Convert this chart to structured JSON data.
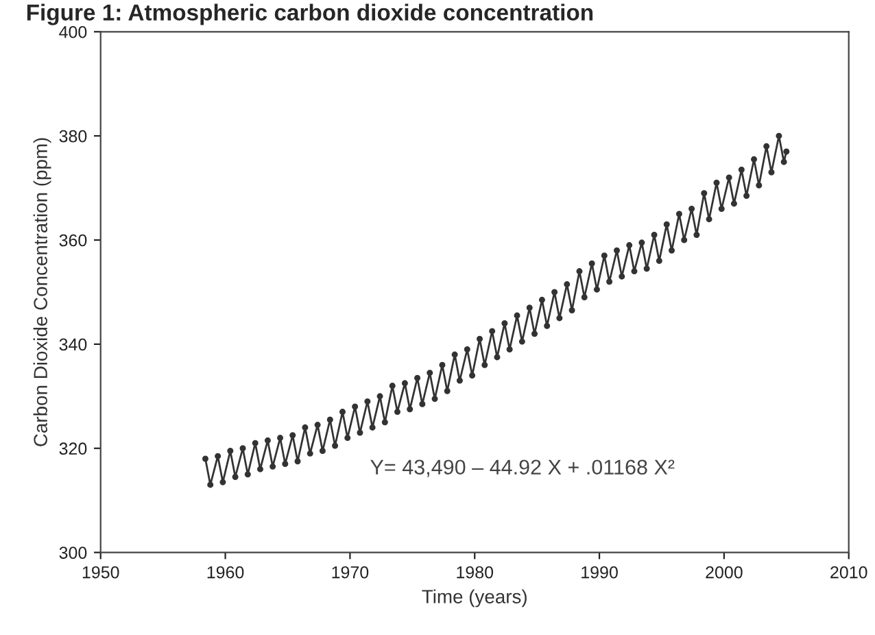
{
  "chart_data": {
    "type": "line",
    "title": "Figure 1: Atmospheric carbon dioxide concentration",
    "xlabel": "Time (years)",
    "ylabel": "Carbon Dioxide Concentration (ppm)",
    "annotations": [
      "Y= 43,490 – 44.92 X + .01168 X²"
    ],
    "xlim": [
      1950,
      2010
    ],
    "xticks": [
      1950,
      1960,
      1970,
      1980,
      1990,
      2000,
      2010
    ],
    "ylim": [
      300,
      400
    ],
    "yticks": [
      300,
      320,
      340,
      360,
      380,
      400
    ],
    "grid": false,
    "legend": false,
    "marker": "circle",
    "line_style": "solid",
    "series": [
      {
        "color": "#333333",
        "x": [
          1958.4,
          1958.8,
          1959.4,
          1959.8,
          1960.4,
          1960.8,
          1961.4,
          1961.8,
          1962.4,
          1962.8,
          1963.4,
          1963.8,
          1964.4,
          1964.8,
          1965.4,
          1965.8,
          1966.4,
          1966.8,
          1967.4,
          1967.8,
          1968.4,
          1968.8,
          1969.4,
          1969.8,
          1970.4,
          1970.8,
          1971.4,
          1971.8,
          1972.4,
          1972.8,
          1973.4,
          1973.8,
          1974.4,
          1974.8,
          1975.4,
          1975.8,
          1976.4,
          1976.8,
          1977.4,
          1977.8,
          1978.4,
          1978.8,
          1979.4,
          1979.8,
          1980.4,
          1980.8,
          1981.4,
          1981.8,
          1982.4,
          1982.8,
          1983.4,
          1983.8,
          1984.4,
          1984.8,
          1985.4,
          1985.8,
          1986.4,
          1986.8,
          1987.4,
          1987.8,
          1988.4,
          1988.8,
          1989.4,
          1989.8,
          1990.4,
          1990.8,
          1991.4,
          1991.8,
          1992.4,
          1992.8,
          1993.4,
          1993.8,
          1994.4,
          1994.8,
          1995.4,
          1995.8,
          1996.4,
          1996.8,
          1997.4,
          1997.8,
          1998.4,
          1998.8,
          1999.4,
          1999.8,
          2000.4,
          2000.8,
          2001.4,
          2001.8,
          2002.4,
          2002.8,
          2003.4,
          2003.8,
          2004.4,
          2004.8,
          2005.0
        ],
        "values": [
          318,
          313,
          318.5,
          313.5,
          319.5,
          314.5,
          320,
          315,
          321,
          316,
          321.5,
          316.5,
          322,
          317,
          322.5,
          317.5,
          324,
          319,
          324.5,
          319.5,
          325.5,
          320.5,
          327,
          322,
          328,
          323,
          329,
          324,
          330,
          325,
          332,
          327,
          332.5,
          327.5,
          333.5,
          328.5,
          334.5,
          329.5,
          336,
          331,
          338,
          333,
          339,
          334,
          341,
          336,
          342.5,
          337.5,
          344,
          339,
          345.5,
          340.5,
          347,
          342,
          348.5,
          343.5,
          350,
          345,
          351.5,
          346.5,
          354,
          349,
          355.5,
          350.5,
          357,
          352,
          358,
          353,
          359,
          354,
          359.5,
          354.5,
          361,
          356,
          363,
          358,
          365,
          360,
          366,
          361,
          369,
          364,
          371,
          366,
          372,
          367,
          373.5,
          368.5,
          375.5,
          370.5,
          378,
          373,
          380,
          375,
          377
        ]
      }
    ]
  }
}
